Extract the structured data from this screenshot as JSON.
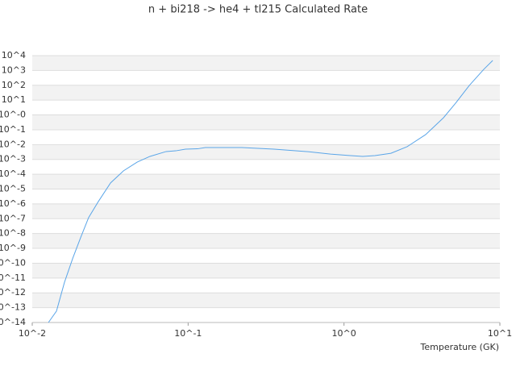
{
  "chart_data": {
    "type": "line",
    "title": "n + bi218 -> he4 + tl215 Calculated Rate",
    "x_label": "Temperature (GK)",
    "xlog": true,
    "ylog": true,
    "grid": true,
    "xlim": [
      0.01,
      10
    ],
    "ylim": [
      1e-14,
      10000
    ],
    "xticks": [
      {
        "value": 0.01,
        "label": "10^-2"
      },
      {
        "value": 0.1,
        "label": "10^-1"
      },
      {
        "value": 1,
        "label": "10^0"
      },
      {
        "value": 10,
        "label": "10^1"
      }
    ],
    "yticks": [
      {
        "value": 1e-14,
        "label": "10^-14"
      },
      {
        "value": 1e-13,
        "label": "10^-13"
      },
      {
        "value": 1e-12,
        "label": "10^-12"
      },
      {
        "value": 1e-11,
        "label": "10^-11"
      },
      {
        "value": 1e-10,
        "label": "10^-10"
      },
      {
        "value": 1e-09,
        "label": "10^-9"
      },
      {
        "value": 1e-08,
        "label": "10^-8"
      },
      {
        "value": 1e-07,
        "label": "10^-7"
      },
      {
        "value": 1e-06,
        "label": "10^-6"
      },
      {
        "value": 1e-05,
        "label": "10^-5"
      },
      {
        "value": 0.0001,
        "label": "10^-4"
      },
      {
        "value": 0.001,
        "label": "10^-3"
      },
      {
        "value": 0.01,
        "label": "10^-2"
      },
      {
        "value": 0.1,
        "label": "10^-1"
      },
      {
        "value": 1,
        "label": "10^-0"
      },
      {
        "value": 10,
        "label": "10^1"
      },
      {
        "value": 100,
        "label": "10^2"
      },
      {
        "value": 1000,
        "label": "10^3"
      },
      {
        "value": 10000,
        "label": "10^4"
      }
    ],
    "x": [
      0.0127,
      0.0143,
      0.0161,
      0.0182,
      0.0204,
      0.023,
      0.0265,
      0.0318,
      0.0385,
      0.0471,
      0.0569,
      0.0723,
      0.0834,
      0.0961,
      0.115,
      0.129,
      0.221,
      0.356,
      0.574,
      0.82,
      1.1,
      1.32,
      1.58,
      2.0,
      2.54,
      3.34,
      4.35,
      5.2,
      6.37,
      7.89,
      9.0
    ],
    "series": [
      {
        "color": "#5aa5e8",
        "values": [
          1e-14,
          5.8e-14,
          5.2e-12,
          2.2e-10,
          5.1e-09,
          1.2e-07,
          1.4e-06,
          2.6e-05,
          0.00017,
          0.00066,
          0.0016,
          0.0034,
          0.0038,
          0.0049,
          0.0052,
          0.0063,
          0.0063,
          0.0049,
          0.0034,
          0.0023,
          0.0018,
          0.0016,
          0.0018,
          0.0026,
          0.0072,
          0.047,
          0.65,
          6.2,
          98,
          1200,
          4700
        ]
      }
    ]
  }
}
